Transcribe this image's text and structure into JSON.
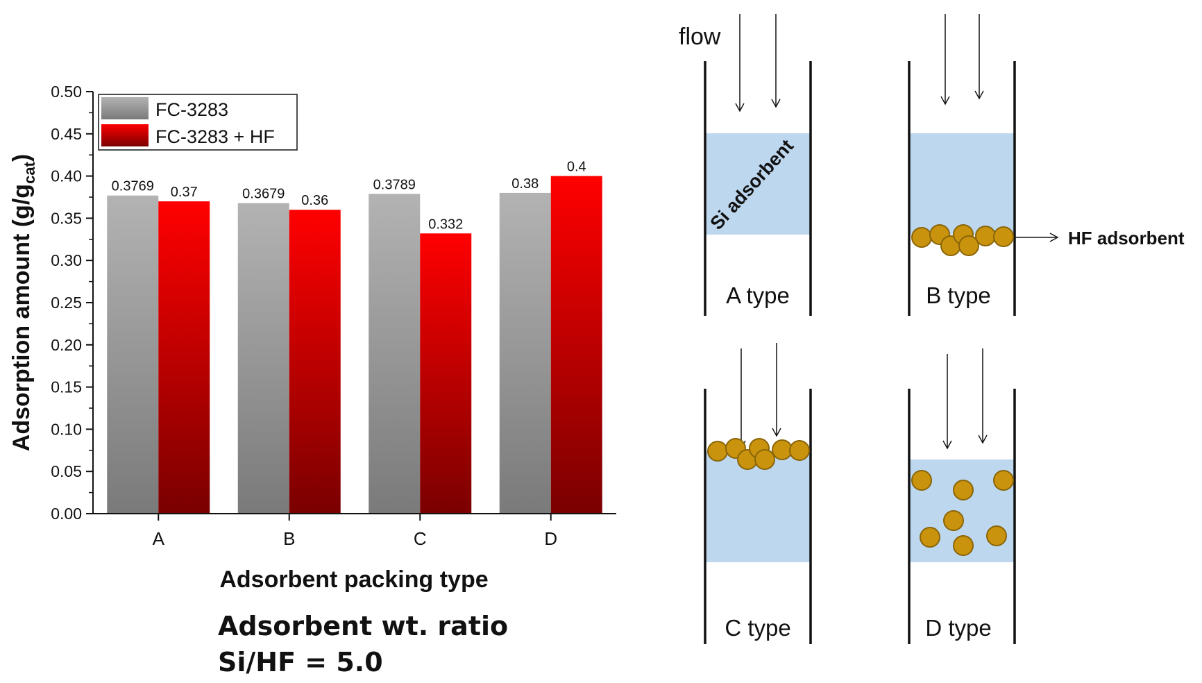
{
  "chart_data": {
    "type": "bar",
    "categories": [
      "A",
      "B",
      "C",
      "D"
    ],
    "series": [
      {
        "name": "FC-3283",
        "values": [
          0.3769,
          0.3679,
          0.3789,
          0.38
        ],
        "labels": [
          "0.3769",
          "0.3679",
          "0.3789",
          "0.38"
        ]
      },
      {
        "name": "FC-3283 + HF",
        "values": [
          0.37,
          0.36,
          0.332,
          0.4
        ],
        "labels": [
          "0.37",
          "0.36",
          "0.332",
          "0.4"
        ]
      }
    ],
    "xlabel": "Adsorbent packing type",
    "ylabel": "Adsorption amount (g/g",
    "ylabel_sub": "cat",
    "ylabel_close": ")",
    "ylim": [
      0,
      0.5
    ],
    "yticks": [
      "0.00",
      "0.05",
      "0.10",
      "0.15",
      "0.20",
      "0.25",
      "0.30",
      "0.35",
      "0.40",
      "0.45",
      "0.50"
    ],
    "legend_position": "top-left",
    "grid": false,
    "colors": {
      "series_0": "#9e9e9e",
      "series_1": "#ee0000"
    }
  },
  "notes": {
    "line1": "Adsorbent wt. ratio",
    "line2": "Si/HF = 5.0"
  },
  "diagram": {
    "flow_label": "flow",
    "si_label": "Si adsorbent",
    "hf_label": "HF adsorbent",
    "types": [
      "A type",
      "B type",
      "C type",
      "D type"
    ],
    "colors": {
      "si": "#bdd7ee",
      "hf_particle": "#c9930e",
      "hf_outline": "#8a6508",
      "wall": "#111111"
    }
  }
}
